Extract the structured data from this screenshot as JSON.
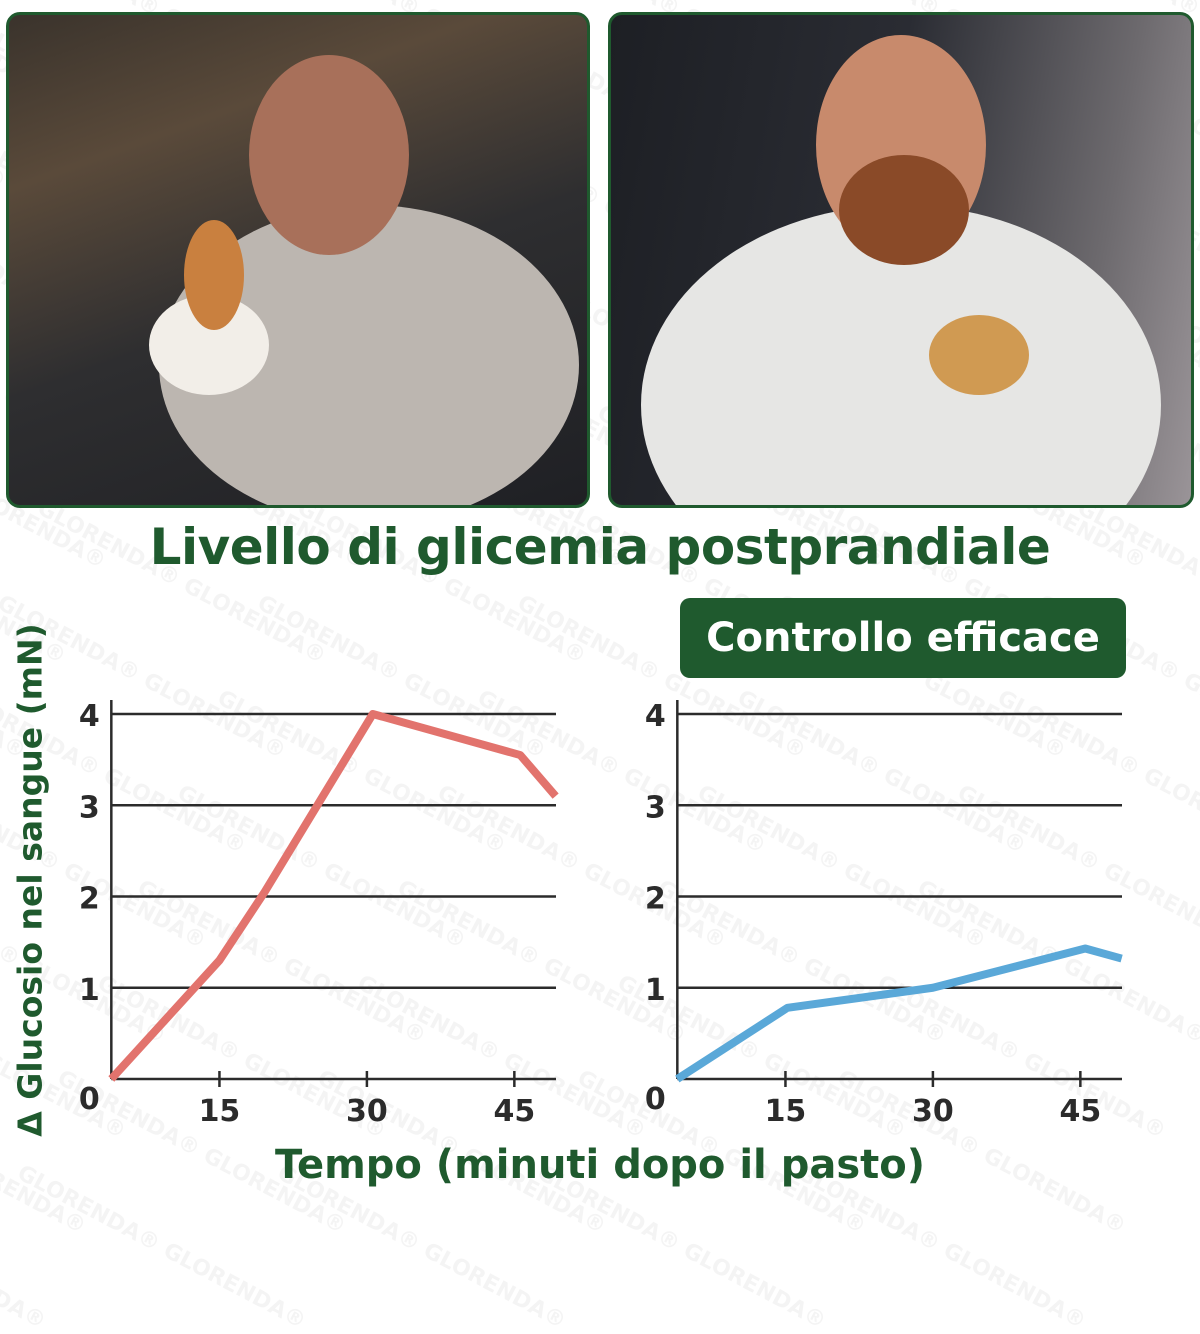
{
  "watermark": "GLORENDA®",
  "title": "Livello di glicemia postprandiale",
  "badge": "Controllo efficace",
  "colors": {
    "brand_green": "#1f5a2e",
    "left_series": "#e2736d",
    "right_series": "#5aa8d8",
    "axis": "#2b2b2b"
  },
  "photos": [
    {
      "subject": "man eating cake and pastries on sofa"
    },
    {
      "subject": "bearded man eating a burger"
    }
  ],
  "chart_data": [
    {
      "type": "line",
      "title": "",
      "xlabel": "Tempo (minuti dopo il pasto)",
      "ylabel": "Δ Glucosio nel sangue (mN)",
      "x_ticks": [
        "15",
        "30",
        "45"
      ],
      "y_ticks": [
        "0",
        "1",
        "2",
        "3",
        "4"
      ],
      "xlim": [
        4,
        49
      ],
      "ylim": [
        0,
        4
      ],
      "grid": "horizontal",
      "series": [
        {
          "x": [
            4,
            15,
            19.6,
            30.6,
            45.6,
            49.2
          ],
          "y": [
            0,
            1.3,
            2.05,
            4.0,
            3.55,
            3.1
          ],
          "color": "#e2736d"
        }
      ]
    },
    {
      "type": "line",
      "title": "Controllo efficace",
      "xlabel": "Tempo (minuti dopo il pasto)",
      "ylabel": "Δ Glucosio nel sangue (mN)",
      "x_ticks": [
        "15",
        "30",
        "45"
      ],
      "y_ticks": [
        "0",
        "1",
        "2",
        "3",
        "4"
      ],
      "xlim": [
        4,
        49
      ],
      "ylim": [
        0,
        4
      ],
      "grid": "horizontal",
      "series": [
        {
          "x": [
            4,
            15.2,
            30,
            45.5,
            49.2
          ],
          "y": [
            0,
            0.78,
            1.0,
            1.43,
            1.32
          ],
          "color": "#5aa8d8"
        }
      ]
    }
  ]
}
